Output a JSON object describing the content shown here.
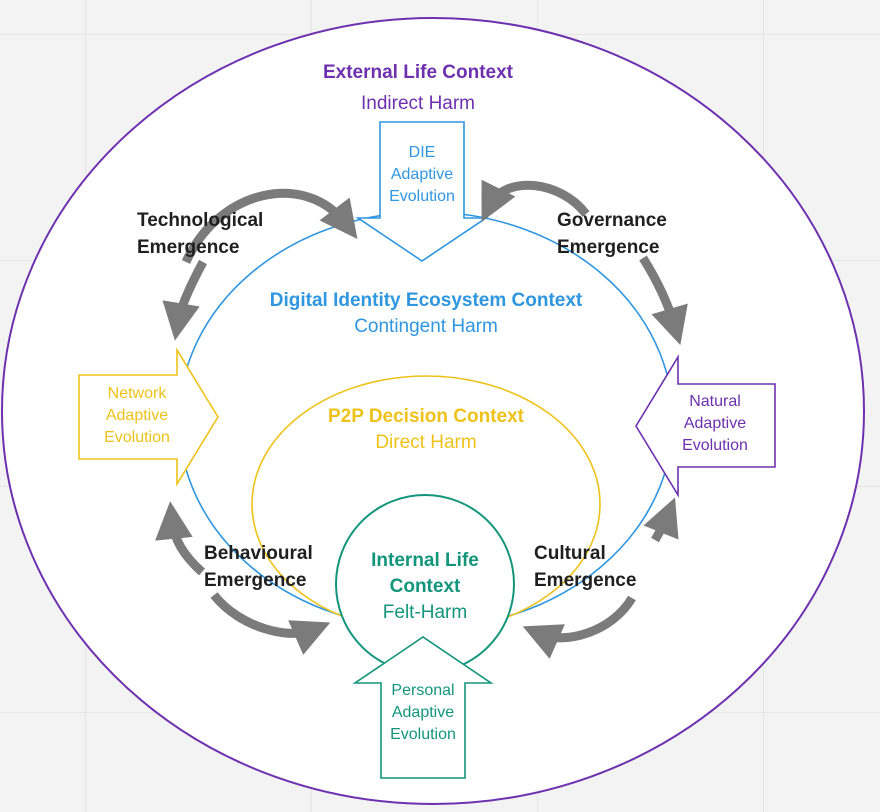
{
  "colors": {
    "outer": "#6d31b0",
    "ecosystem": "#2f96e0",
    "p2p": "#eec21a",
    "internal": "#13957c",
    "connector": "#7b7b7b",
    "emergence_text": "#1f1f1f"
  },
  "external": {
    "title": "External Life Context",
    "subtitle": "Indirect Harm"
  },
  "ecosystem": {
    "title": "Digital Identity Ecosystem Context",
    "subtitle": "Contingent Harm"
  },
  "p2p": {
    "title": "P2P Decision Context",
    "subtitle": "Direct Harm"
  },
  "internal": {
    "title_line1": "Internal Life",
    "title_line2": "Context",
    "subtitle": "Felt-Harm"
  },
  "emergence": {
    "technological": {
      "line1": "Technological",
      "line2": "Emergence"
    },
    "governance": {
      "line1": "Governance",
      "line2": "Emergence"
    },
    "behavioural": {
      "line1": "Behavioural",
      "line2": "Emergence"
    },
    "cultural": {
      "line1": "Cultural",
      "line2": "Emergence"
    }
  },
  "adaptive": {
    "die": {
      "line1": "DIE",
      "line2": "Adaptive",
      "line3": "Evolution"
    },
    "network": {
      "line1": "Network",
      "line2": "Adaptive",
      "line3": "Evolution"
    },
    "natural": {
      "line1": "Natural",
      "line2": "Adaptive",
      "line3": "Evolution"
    },
    "personal": {
      "line1": "Personal",
      "line2": "Adaptive",
      "line3": "Evolution"
    }
  }
}
